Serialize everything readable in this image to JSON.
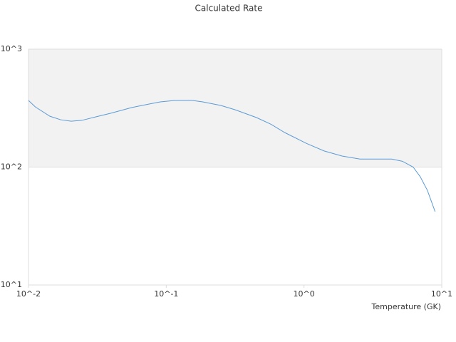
{
  "chart_data": {
    "type": "line",
    "title": "Calculated Rate",
    "x_label": "Temperature (GK)",
    "x": [
      0.01,
      0.0112,
      0.0143,
      0.0171,
      0.0204,
      0.0244,
      0.031,
      0.0394,
      0.0563,
      0.0757,
      0.0905,
      0.115,
      0.155,
      0.184,
      0.249,
      0.317,
      0.452,
      0.571,
      0.726,
      1.04,
      1.4,
      1.89,
      2.55,
      4.34,
      5.18,
      6.2,
      6.98,
      7.86,
      8.95
    ],
    "values": [
      367,
      324,
      270,
      252,
      245,
      249,
      267,
      286,
      320,
      343,
      357,
      367,
      367,
      357,
      333,
      306,
      263,
      232,
      196,
      159,
      137,
      124,
      117,
      117,
      112,
      100,
      82.8,
      63.6,
      41.9
    ],
    "color": "#5b9bd5",
    "xlim": [
      0.01,
      10
    ],
    "xticks": [
      {
        "value": 0.01,
        "label": "10^-2"
      },
      {
        "value": 0.1,
        "label": "10^-1"
      },
      {
        "value": 1,
        "label": "10^0"
      },
      {
        "value": 10,
        "label": "10^1"
      }
    ],
    "ylim": [
      10,
      1000
    ],
    "yticks": [
      {
        "value": 10,
        "label": "10^1"
      },
      {
        "value": 100,
        "label": "10^2"
      },
      {
        "value": 1000,
        "label": "10^3"
      }
    ],
    "log_x": true,
    "log_y": true,
    "grid": true,
    "band_color": "#f2f2f2"
  }
}
